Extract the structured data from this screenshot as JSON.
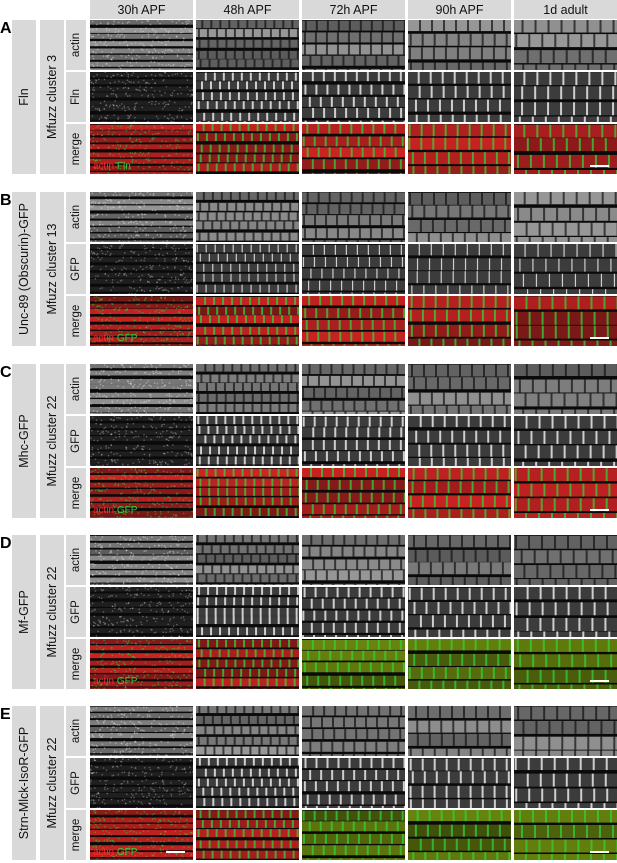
{
  "columns": [
    "30h APF",
    "48h APF",
    "72h APF",
    "90h APF",
    "1d adult"
  ],
  "panels": [
    {
      "letter": "A",
      "gene": "Fln",
      "cluster": "Mfuzz cluster 3",
      "rows": [
        "actin",
        "Fln",
        "merge"
      ],
      "merge_a": "actin",
      "merge_b": "Fln",
      "has_scalebar_last": true,
      "has_scalebar_first": false
    },
    {
      "letter": "B",
      "gene": "Unc-89 (Obscurin)-GFP",
      "cluster": "Mfuzz cluster 13",
      "rows": [
        "actin",
        "GFP",
        "merge"
      ],
      "merge_a": "actin",
      "merge_b": "GFP",
      "has_scalebar_last": true,
      "has_scalebar_first": false
    },
    {
      "letter": "C",
      "gene": "Mhc-GFP",
      "cluster": "Mfuzz cluster 22",
      "rows": [
        "actin",
        "GFP",
        "merge"
      ],
      "merge_a": "actin",
      "merge_b": "GFP",
      "has_scalebar_last": true,
      "has_scalebar_first": false
    },
    {
      "letter": "D",
      "gene": "Mf-GFP",
      "cluster": "Mfuzz cluster 22",
      "rows": [
        "actin",
        "GFP",
        "merge"
      ],
      "merge_a": "actin",
      "merge_b": "GFP",
      "has_scalebar_last": true,
      "has_scalebar_first": false
    },
    {
      "letter": "E",
      "gene": "Strn-Mlck-IsoR-GFP",
      "cluster": "Mfuzz cluster 22",
      "rows": [
        "actin",
        "GFP",
        "merge"
      ],
      "merge_a": "actin",
      "merge_b": "GFP",
      "has_scalebar_last": true,
      "has_scalebar_first": true
    }
  ],
  "colors": {
    "actin": "#ff2a2a",
    "marker": "#31d13a",
    "label_bg": "#d9d9d9",
    "image_bg": "#0a0a0a"
  }
}
